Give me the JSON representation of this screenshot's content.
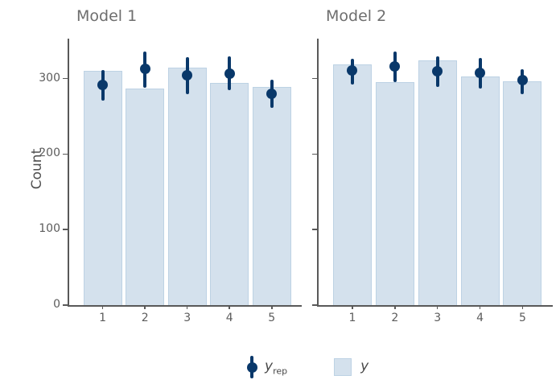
{
  "figure": {
    "ylabel": "Count",
    "colors": {
      "background": "#ffffff",
      "bar_fill": "#d4e1ed",
      "bar_border": "#bdd2e4",
      "point": "#09386a",
      "axis": "#595959",
      "title_text": "#6e6e6e",
      "tick_text": "#5c5c5c",
      "legend_text": "#484848"
    }
  },
  "chart_data": [
    {
      "type": "bar",
      "title": "Model 1",
      "categories": [
        "1",
        "2",
        "3",
        "4",
        "5"
      ],
      "ylabel": "Count",
      "ylim": [
        0,
        353
      ],
      "yticks": [
        0,
        100,
        200,
        300
      ],
      "show_ytick_labels": true,
      "grid": false,
      "legend_position": "bottom",
      "series": [
        {
          "name": "y",
          "type": "bar",
          "values": [
            310,
            287,
            315,
            294,
            289
          ]
        },
        {
          "name": "y_rep",
          "type": "pointrange",
          "values": [
            292,
            313,
            304,
            307,
            280
          ],
          "lower": [
            271,
            288,
            279,
            285,
            261
          ],
          "upper": [
            311,
            336,
            328,
            330,
            299
          ]
        }
      ]
    },
    {
      "type": "bar",
      "title": "Model 2",
      "categories": [
        "1",
        "2",
        "3",
        "4",
        "5"
      ],
      "ylabel": "Count",
      "ylim": [
        0,
        353
      ],
      "yticks": [
        0,
        100,
        200,
        300
      ],
      "show_ytick_labels": false,
      "grid": false,
      "legend_position": "bottom",
      "series": [
        {
          "name": "y",
          "type": "bar",
          "values": [
            319,
            295,
            324,
            303,
            297
          ]
        },
        {
          "name": "y_rep",
          "type": "pointrange",
          "values": [
            311,
            316,
            310,
            308,
            298
          ],
          "lower": [
            292,
            295,
            289,
            287,
            279
          ],
          "upper": [
            326,
            336,
            330,
            327,
            313
          ]
        }
      ]
    }
  ],
  "legend": {
    "items": [
      {
        "label_main": "y",
        "label_sub": "rep",
        "marker": "pointrange"
      },
      {
        "label_main": "y",
        "label_sub": "",
        "marker": "square"
      }
    ]
  }
}
